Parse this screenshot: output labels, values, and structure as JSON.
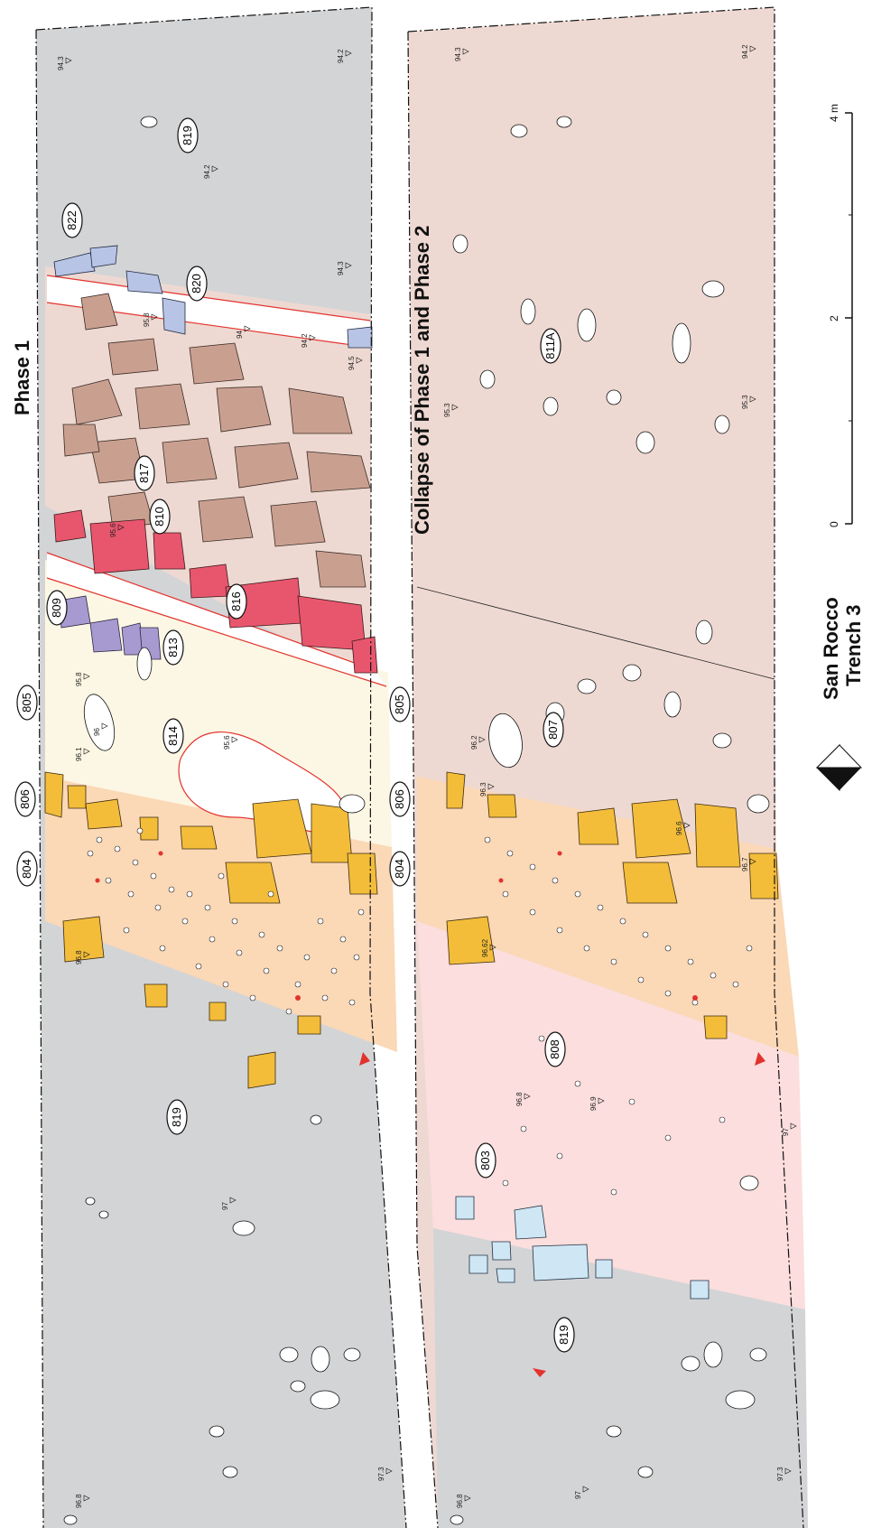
{
  "titles": {
    "phase1": "Phase 1",
    "collapse": "Collapse of Phase 1 and Phase 2",
    "site_line1": "San Rocco",
    "site_line2": "Trench 3"
  },
  "scale": {
    "t0": "0",
    "t2": "2",
    "t4": "4 m"
  },
  "left_panel_labels": [
    "822",
    "820",
    "819",
    "817",
    "810",
    "809",
    "816",
    "813",
    "814",
    "805",
    "806",
    "804",
    "819"
  ],
  "right_panel_labels": [
    "811A",
    "805",
    "807",
    "806",
    "804",
    "808",
    "803",
    "819"
  ],
  "left_elevations": [
    "94.3",
    "94.2",
    "94.2",
    "94.3",
    "95.8",
    "94",
    "94.2",
    "94.5",
    "95.6",
    "95.8",
    "96.1",
    "96",
    "95.6",
    "96.8",
    "97",
    "96.8",
    "97.3"
  ],
  "right_elevations": [
    "94.3",
    "94.2",
    "95.3",
    "95.3",
    "96.2",
    "96.3",
    "96.6",
    "96.7",
    "96.62",
    "96.8",
    "96.9",
    "97",
    "97",
    "96.8",
    "97.3"
  ],
  "colors": {
    "sterile_grey": "#d3d4d6",
    "brown_fill": "#eed9d2",
    "stone_brown": "#c9a090",
    "red_stone": "#e8566e",
    "purple_stone": "#a79ad0",
    "blue_stone": "#b8c4e6",
    "cream": "#fcf7e4",
    "orange": "#fbd8b6",
    "yellow_stone": "#f3bd3a",
    "pink": "#fbdedd",
    "light_blue": "#cfe7f5",
    "cut_red": "#e2332e"
  },
  "icons": [
    "north-arrow-icon"
  ]
}
